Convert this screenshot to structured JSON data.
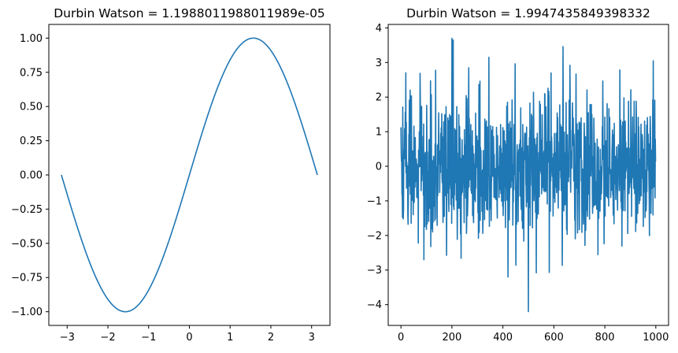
{
  "chart_data": [
    {
      "type": "line",
      "title": "Durbin Watson = 1.1988011988011989e-05",
      "xlabel": "",
      "ylabel": "",
      "xlim": [
        -3.45,
        3.45
      ],
      "ylim": [
        -1.1,
        1.1
      ],
      "x_ticks": [
        -3,
        -2,
        -1,
        0,
        1,
        2,
        3
      ],
      "x_tick_labels": [
        "−3",
        "−2",
        "−1",
        "0",
        "1",
        "2",
        "3"
      ],
      "y_ticks": [
        -1.0,
        -0.75,
        -0.5,
        -0.25,
        0.0,
        0.25,
        0.5,
        0.75,
        1.0
      ],
      "y_tick_labels": [
        "−1.00",
        "−0.75",
        "−0.50",
        "−0.25",
        "0.00",
        "0.25",
        "0.50",
        "0.75",
        "1.00"
      ],
      "grid": false,
      "color": "#1f77b4",
      "series": [
        {
          "function": "sin(x)",
          "x_range": [
            -3.14159,
            3.14159
          ],
          "num_points": 1000
        }
      ]
    },
    {
      "type": "line",
      "title": "Durbin Watson = 1.9947435849398332",
      "xlabel": "",
      "ylabel": "",
      "xlim": [
        -50,
        1050
      ],
      "ylim": [
        -4.6,
        4.1
      ],
      "x_ticks": [
        0,
        200,
        400,
        600,
        800,
        1000
      ],
      "x_tick_labels": [
        "0",
        "200",
        "400",
        "600",
        "800",
        "1000"
      ],
      "y_ticks": [
        -4,
        -3,
        -2,
        -1,
        0,
        1,
        2,
        3,
        4
      ],
      "y_tick_labels": [
        "−4",
        "−3",
        "−2",
        "−1",
        "0",
        "1",
        "2",
        "3",
        "4"
      ],
      "grid": false,
      "color": "#1f77b4",
      "series": [
        {
          "distribution": "standard normal noise",
          "num_points": 1000,
          "notable_points": [
            {
              "x": 200,
              "y": 3.7
            },
            {
              "x": 205,
              "y": 3.65
            },
            {
              "x": 345,
              "y": 3.15
            },
            {
              "x": 990,
              "y": 3.05
            },
            {
              "x": 420,
              "y": -3.2
            },
            {
              "x": 500,
              "y": -4.2
            },
            {
              "x": 90,
              "y": -2.7
            }
          ]
        }
      ]
    }
  ]
}
